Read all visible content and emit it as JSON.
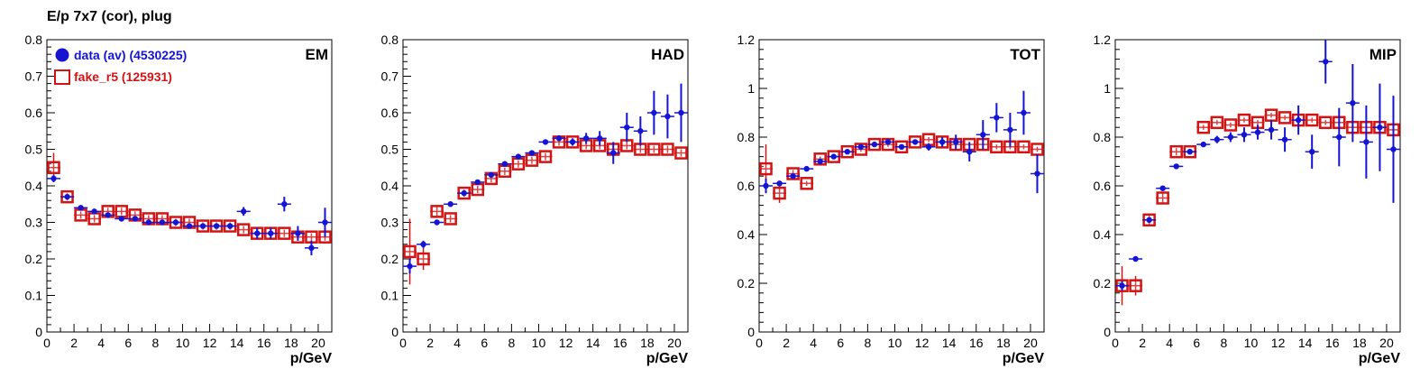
{
  "title": "E/p 7x7 (cor), plug",
  "colors": {
    "data": "#1414d2",
    "fake": "#d21414",
    "axis": "#000000"
  },
  "legend": {
    "data_label": "data (av) (4530225)",
    "fake_label": "fake_r5 (125931)"
  },
  "chart_data": [
    {
      "type": "scatter",
      "panel_label": "EM",
      "xlabel": "p/GeV",
      "xlim": [
        0,
        21
      ],
      "ylim": [
        0,
        0.8
      ],
      "yticks": [
        "0",
        "0.1",
        "0.2",
        "0.3",
        "0.4",
        "0.5",
        "0.6",
        "0.7",
        "0.8"
      ],
      "xticks": [
        "0",
        "2",
        "4",
        "6",
        "8",
        "10",
        "12",
        "14",
        "16",
        "18",
        "20"
      ],
      "x": [
        0.5,
        1.5,
        2.5,
        3.5,
        4.5,
        5.5,
        6.5,
        7.5,
        8.5,
        9.5,
        10.5,
        11.5,
        12.5,
        13.5,
        14.5,
        15.5,
        16.5,
        17.5,
        18.5,
        19.5,
        20.5
      ],
      "series": [
        {
          "name": "data (av) (4530225)",
          "values": [
            0.42,
            0.37,
            0.34,
            0.33,
            0.32,
            0.31,
            0.31,
            0.3,
            0.3,
            0.3,
            0.29,
            0.29,
            0.29,
            0.29,
            0.33,
            0.27,
            0.27,
            0.35,
            0.27,
            0.23,
            0.3
          ],
          "errors": [
            0.01,
            0.005,
            0.005,
            0.005,
            0.005,
            0.005,
            0.005,
            0.005,
            0.005,
            0.005,
            0.005,
            0.005,
            0.005,
            0.008,
            0.012,
            0.015,
            0.015,
            0.02,
            0.02,
            0.02,
            0.04
          ]
        },
        {
          "name": "fake_r5 (125931)",
          "values": [
            0.45,
            0.37,
            0.32,
            0.31,
            0.33,
            0.33,
            0.32,
            0.31,
            0.31,
            0.3,
            0.3,
            0.29,
            0.29,
            0.29,
            0.28,
            0.27,
            0.27,
            0.27,
            0.26,
            0.26,
            0.26
          ],
          "errors": [
            0.04,
            0.01,
            0.01,
            0.01,
            0.01,
            0.01,
            0.01,
            0.01,
            0.01,
            0.01,
            0.01,
            0.01,
            0.01,
            0.01,
            0.01,
            0.01,
            0.01,
            0.01,
            0.01,
            0.01,
            0.01
          ]
        }
      ]
    },
    {
      "type": "scatter",
      "panel_label": "HAD",
      "xlabel": "p/GeV",
      "xlim": [
        0,
        21
      ],
      "ylim": [
        0,
        0.8
      ],
      "yticks": [
        "0",
        "0.1",
        "0.2",
        "0.3",
        "0.4",
        "0.5",
        "0.6",
        "0.7",
        "0.8"
      ],
      "xticks": [
        "0",
        "2",
        "4",
        "6",
        "8",
        "10",
        "12",
        "14",
        "16",
        "18",
        "20"
      ],
      "x": [
        0.5,
        1.5,
        2.5,
        3.5,
        4.5,
        5.5,
        6.5,
        7.5,
        8.5,
        9.5,
        10.5,
        11.5,
        12.5,
        13.5,
        14.5,
        15.5,
        16.5,
        17.5,
        18.5,
        19.5,
        20.5
      ],
      "series": [
        {
          "name": "data (av) (4530225)",
          "values": [
            0.18,
            0.24,
            0.3,
            0.35,
            0.38,
            0.41,
            0.43,
            0.46,
            0.48,
            0.49,
            0.52,
            0.53,
            0.52,
            0.53,
            0.53,
            0.49,
            0.56,
            0.55,
            0.6,
            0.59,
            0.6
          ],
          "errors": [
            0.02,
            0.01,
            0.005,
            0.005,
            0.005,
            0.005,
            0.005,
            0.005,
            0.005,
            0.005,
            0.005,
            0.008,
            0.01,
            0.015,
            0.02,
            0.03,
            0.04,
            0.04,
            0.06,
            0.06,
            0.08
          ]
        },
        {
          "name": "fake_r5 (125931)",
          "values": [
            0.22,
            0.2,
            0.33,
            0.31,
            0.38,
            0.39,
            0.42,
            0.44,
            0.46,
            0.47,
            0.48,
            0.52,
            0.52,
            0.51,
            0.51,
            0.5,
            0.51,
            0.5,
            0.5,
            0.5,
            0.49
          ],
          "errors": [
            0.09,
            0.03,
            0.015,
            0.01,
            0.01,
            0.01,
            0.01,
            0.01,
            0.01,
            0.01,
            0.01,
            0.01,
            0.01,
            0.01,
            0.01,
            0.01,
            0.01,
            0.01,
            0.01,
            0.01,
            0.01
          ]
        }
      ]
    },
    {
      "type": "scatter",
      "panel_label": "TOT",
      "xlabel": "p/GeV",
      "xlim": [
        0,
        21
      ],
      "ylim": [
        0,
        1.2
      ],
      "yticks": [
        "0",
        "0.2",
        "0.4",
        "0.6",
        "0.8",
        "1",
        "1.2"
      ],
      "xticks": [
        "0",
        "2",
        "4",
        "6",
        "8",
        "10",
        "12",
        "14",
        "16",
        "18",
        "20"
      ],
      "x": [
        0.5,
        1.5,
        2.5,
        3.5,
        4.5,
        5.5,
        6.5,
        7.5,
        8.5,
        9.5,
        10.5,
        11.5,
        12.5,
        13.5,
        14.5,
        15.5,
        16.5,
        17.5,
        18.5,
        19.5,
        20.5
      ],
      "series": [
        {
          "name": "data (av) (4530225)",
          "values": [
            0.6,
            0.61,
            0.64,
            0.67,
            0.7,
            0.72,
            0.74,
            0.76,
            0.77,
            0.78,
            0.76,
            0.78,
            0.76,
            0.78,
            0.78,
            0.74,
            0.81,
            0.88,
            0.83,
            0.9,
            0.65
          ],
          "errors": [
            0.03,
            0.01,
            0.005,
            0.005,
            0.005,
            0.005,
            0.005,
            0.005,
            0.005,
            0.005,
            0.008,
            0.01,
            0.015,
            0.02,
            0.03,
            0.04,
            0.06,
            0.06,
            0.07,
            0.09,
            0.08
          ]
        },
        {
          "name": "fake_r5 (125931)",
          "values": [
            0.67,
            0.57,
            0.65,
            0.61,
            0.71,
            0.72,
            0.74,
            0.75,
            0.77,
            0.77,
            0.76,
            0.78,
            0.79,
            0.78,
            0.77,
            0.77,
            0.77,
            0.76,
            0.76,
            0.76,
            0.75
          ],
          "errors": [
            0.1,
            0.04,
            0.015,
            0.01,
            0.01,
            0.01,
            0.01,
            0.01,
            0.01,
            0.01,
            0.01,
            0.01,
            0.01,
            0.01,
            0.01,
            0.01,
            0.01,
            0.01,
            0.01,
            0.01,
            0.01
          ]
        }
      ]
    },
    {
      "type": "scatter",
      "panel_label": "MIP",
      "xlabel": "p/GeV",
      "xlim": [
        0,
        21
      ],
      "ylim": [
        0,
        1.2
      ],
      "yticks": [
        "0",
        "0.2",
        "0.4",
        "0.6",
        "0.8",
        "1",
        "1.2"
      ],
      "xticks": [
        "0",
        "2",
        "4",
        "6",
        "8",
        "10",
        "12",
        "14",
        "16",
        "18",
        "20"
      ],
      "x": [
        0.5,
        1.5,
        2.5,
        3.5,
        4.5,
        5.5,
        6.5,
        7.5,
        8.5,
        9.5,
        10.5,
        11.5,
        12.5,
        13.5,
        14.5,
        15.5,
        16.5,
        17.5,
        18.5,
        19.5,
        20.5
      ],
      "series": [
        {
          "name": "data (av) (4530225)",
          "values": [
            0.19,
            0.3,
            0.46,
            0.59,
            0.68,
            0.74,
            0.77,
            0.79,
            0.8,
            0.81,
            0.82,
            0.83,
            0.79,
            0.87,
            0.74,
            1.11,
            0.8,
            0.94,
            0.78,
            0.84,
            0.75
          ],
          "errors": [
            0.02,
            0.01,
            0.01,
            0.008,
            0.008,
            0.008,
            0.01,
            0.015,
            0.02,
            0.03,
            0.03,
            0.04,
            0.05,
            0.06,
            0.07,
            0.09,
            0.12,
            0.16,
            0.15,
            0.18,
            0.22
          ]
        },
        {
          "name": "fake_r5 (125931)",
          "values": [
            0.19,
            0.19,
            0.46,
            0.55,
            0.74,
            0.74,
            0.84,
            0.86,
            0.85,
            0.87,
            0.86,
            0.89,
            0.88,
            0.87,
            0.87,
            0.86,
            0.86,
            0.84,
            0.84,
            0.84,
            0.83
          ],
          "errors": [
            0.08,
            0.04,
            0.02,
            0.02,
            0.015,
            0.01,
            0.01,
            0.01,
            0.01,
            0.01,
            0.01,
            0.01,
            0.01,
            0.01,
            0.01,
            0.01,
            0.01,
            0.01,
            0.01,
            0.01,
            0.01
          ]
        }
      ]
    }
  ]
}
